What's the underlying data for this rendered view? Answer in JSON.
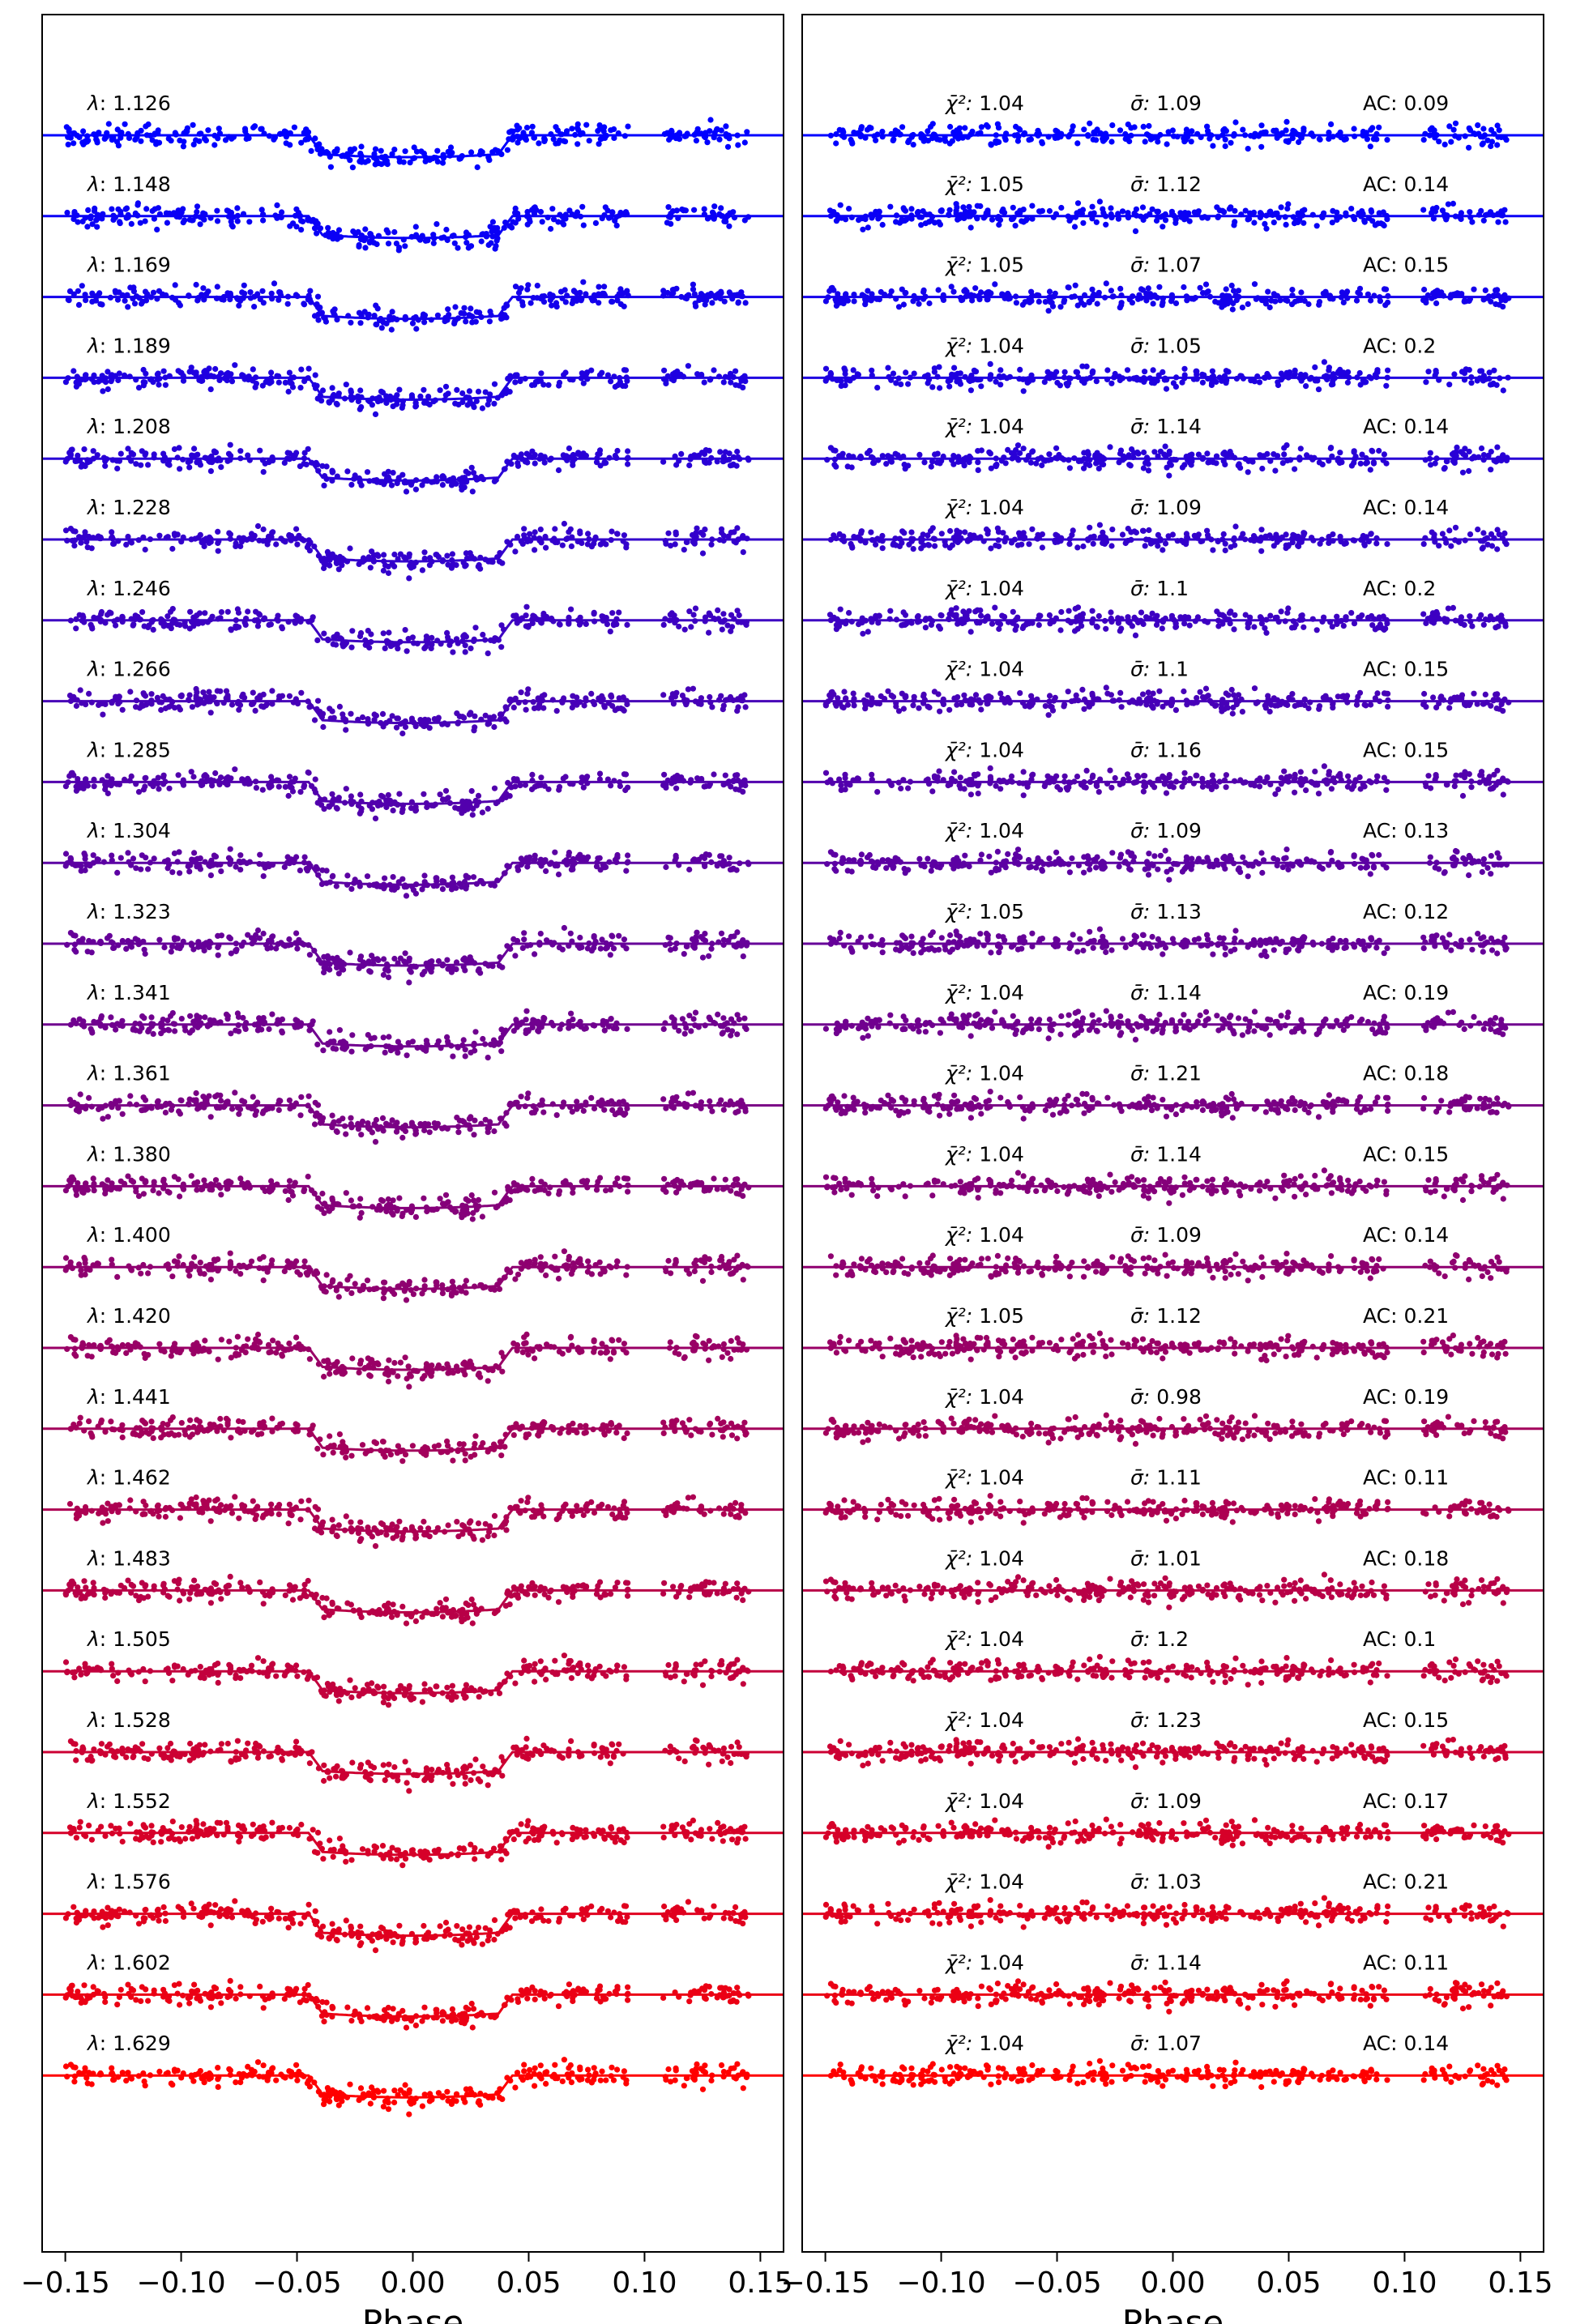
{
  "chart_data": [
    {
      "type": "scatter",
      "panel": "light curves with transit model",
      "xlabel": "Phase",
      "xlim": [
        -0.16,
        0.16
      ],
      "x_ticks": [
        -0.15,
        -0.1,
        -0.05,
        0.0,
        0.05,
        0.1,
        0.15
      ],
      "x_tick_labels": [
        "−0.15",
        "−0.10",
        "−0.05",
        "0.00",
        "0.05",
        "0.10",
        "0.15"
      ],
      "y_ticks_shown": false,
      "grid": false,
      "color_gradient": [
        "#0000ff",
        "#ff0000"
      ],
      "transit_model": {
        "ingress_phase": -0.045,
        "egress_phase": 0.043,
        "relative_depth": 1.0
      },
      "point_gaps": [
        [
          0.093,
          0.108
        ]
      ],
      "series": [
        {
          "label_symbol": "λ",
          "label_value": "1.126",
          "color": "#0000ff"
        },
        {
          "label_symbol": "λ",
          "label_value": "1.148",
          "color": "#0a00f5"
        },
        {
          "label_symbol": "λ",
          "label_value": "1.169",
          "color": "#1400eb"
        },
        {
          "label_symbol": "λ",
          "label_value": "1.189",
          "color": "#1f00e0"
        },
        {
          "label_symbol": "λ",
          "label_value": "1.208",
          "color": "#2900d6"
        },
        {
          "label_symbol": "λ",
          "label_value": "1.228",
          "color": "#3300cc"
        },
        {
          "label_symbol": "λ",
          "label_value": "1.246",
          "color": "#3d00c2"
        },
        {
          "label_symbol": "λ",
          "label_value": "1.266",
          "color": "#4700b8"
        },
        {
          "label_symbol": "λ",
          "label_value": "1.285",
          "color": "#5200ad"
        },
        {
          "label_symbol": "λ",
          "label_value": "1.304",
          "color": "#5c00a3"
        },
        {
          "label_symbol": "λ",
          "label_value": "1.323",
          "color": "#660099"
        },
        {
          "label_symbol": "λ",
          "label_value": "1.341",
          "color": "#70008f"
        },
        {
          "label_symbol": "λ",
          "label_value": "1.361",
          "color": "#7a0085"
        },
        {
          "label_symbol": "λ",
          "label_value": "1.380",
          "color": "#85007a"
        },
        {
          "label_symbol": "λ",
          "label_value": "1.400",
          "color": "#8f0070"
        },
        {
          "label_symbol": "λ",
          "label_value": "1.420",
          "color": "#990066"
        },
        {
          "label_symbol": "λ",
          "label_value": "1.441",
          "color": "#a3005c"
        },
        {
          "label_symbol": "λ",
          "label_value": "1.462",
          "color": "#ad0052"
        },
        {
          "label_symbol": "λ",
          "label_value": "1.483",
          "color": "#b80047"
        },
        {
          "label_symbol": "λ",
          "label_value": "1.505",
          "color": "#c2003d"
        },
        {
          "label_symbol": "λ",
          "label_value": "1.528",
          "color": "#cc0033"
        },
        {
          "label_symbol": "λ",
          "label_value": "1.552",
          "color": "#d60029"
        },
        {
          "label_symbol": "λ",
          "label_value": "1.576",
          "color": "#e0001f"
        },
        {
          "label_symbol": "λ",
          "label_value": "1.602",
          "color": "#eb0014"
        },
        {
          "label_symbol": "λ",
          "label_value": "1.629",
          "color": "#ff0000"
        }
      ]
    },
    {
      "type": "scatter",
      "panel": "residuals",
      "xlabel": "Phase",
      "xlim": [
        -0.16,
        0.16
      ],
      "x_ticks": [
        -0.15,
        -0.1,
        -0.05,
        0.0,
        0.05,
        0.1,
        0.15
      ],
      "x_tick_labels": [
        "−0.15",
        "−0.10",
        "−0.05",
        "0.00",
        "0.05",
        "0.10",
        "0.15"
      ],
      "y_ticks_shown": false,
      "grid": false,
      "stat_labels": {
        "chi2": "χ̄²: ",
        "sigma": "σ̄: ",
        "ac": "AC: "
      },
      "point_gaps": [
        [
          0.093,
          0.108
        ]
      ],
      "series": [
        {
          "chi2": "1.04",
          "sigma": "1.09",
          "ac": "0.09"
        },
        {
          "chi2": "1.05",
          "sigma": "1.12",
          "ac": "0.14"
        },
        {
          "chi2": "1.05",
          "sigma": "1.07",
          "ac": "0.15"
        },
        {
          "chi2": "1.04",
          "sigma": "1.05",
          "ac": "0.2"
        },
        {
          "chi2": "1.04",
          "sigma": "1.14",
          "ac": "0.14"
        },
        {
          "chi2": "1.04",
          "sigma": "1.09",
          "ac": "0.14"
        },
        {
          "chi2": "1.04",
          "sigma": "1.1",
          "ac": "0.2"
        },
        {
          "chi2": "1.04",
          "sigma": "1.1",
          "ac": "0.15"
        },
        {
          "chi2": "1.04",
          "sigma": "1.16",
          "ac": "0.15"
        },
        {
          "chi2": "1.04",
          "sigma": "1.09",
          "ac": "0.13"
        },
        {
          "chi2": "1.05",
          "sigma": "1.13",
          "ac": "0.12"
        },
        {
          "chi2": "1.04",
          "sigma": "1.14",
          "ac": "0.19"
        },
        {
          "chi2": "1.04",
          "sigma": "1.21",
          "ac": "0.18"
        },
        {
          "chi2": "1.04",
          "sigma": "1.14",
          "ac": "0.15"
        },
        {
          "chi2": "1.04",
          "sigma": "1.09",
          "ac": "0.14"
        },
        {
          "chi2": "1.05",
          "sigma": "1.12",
          "ac": "0.21"
        },
        {
          "chi2": "1.04",
          "sigma": "0.98",
          "ac": "0.19"
        },
        {
          "chi2": "1.04",
          "sigma": "1.11",
          "ac": "0.11"
        },
        {
          "chi2": "1.04",
          "sigma": "1.01",
          "ac": "0.18"
        },
        {
          "chi2": "1.04",
          "sigma": "1.2",
          "ac": "0.1"
        },
        {
          "chi2": "1.04",
          "sigma": "1.23",
          "ac": "0.15"
        },
        {
          "chi2": "1.04",
          "sigma": "1.09",
          "ac": "0.17"
        },
        {
          "chi2": "1.04",
          "sigma": "1.03",
          "ac": "0.21"
        },
        {
          "chi2": "1.04",
          "sigma": "1.14",
          "ac": "0.11"
        },
        {
          "chi2": "1.04",
          "sigma": "1.07",
          "ac": "0.14"
        }
      ]
    }
  ]
}
